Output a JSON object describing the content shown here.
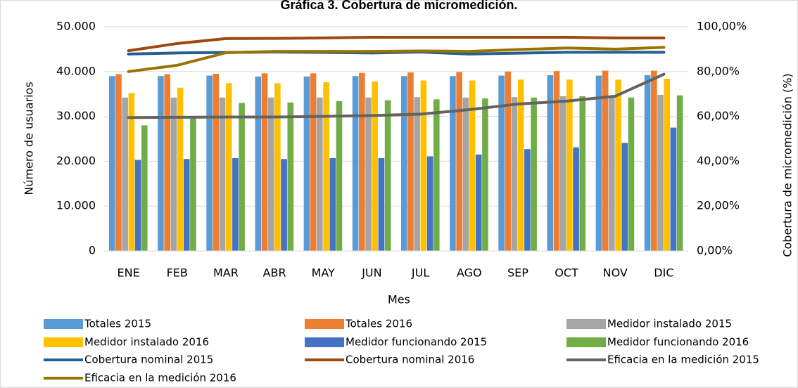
{
  "chart_data": {
    "type": "bar",
    "title": "Gráfica 3. Cobertura de micromedición.",
    "x_label": "Mes",
    "y_label": "Número de usuarios",
    "y2_label": "Cobertura de micromedición (%)",
    "categories": [
      "ENE",
      "FEB",
      "MAR",
      "ABR",
      "MAY",
      "JUN",
      "JUL",
      "AGO",
      "SEP",
      "OCT",
      "NOV",
      "DIC"
    ],
    "ylim": [
      0,
      50000
    ],
    "yticks": [
      0,
      {
        "value": 10000,
        "label": "10.000"
      },
      {
        "value": 20000,
        "label": "20.000"
      },
      {
        "value": 30000,
        "label": "30.000"
      },
      {
        "value": 40000,
        "label": "40.000"
      },
      {
        "value": 50000,
        "label": "50.000"
      }
    ],
    "y2lim": [
      0,
      100
    ],
    "y2ticks": [
      {
        "value": 0,
        "label": "0,00%"
      },
      {
        "value": 20,
        "label": "20,00%"
      },
      {
        "value": 40,
        "label": "40,00%"
      },
      {
        "value": 60,
        "label": "60,00%"
      },
      {
        "value": 80,
        "label": "80,00%"
      },
      {
        "value": 100,
        "label": "100,00%"
      }
    ],
    "grid": true,
    "legend": "bottom",
    "series": [
      {
        "name": "Totales 2015",
        "type": "bar",
        "color": "#5b9bd5",
        "values": [
          39000,
          39000,
          39100,
          38900,
          38900,
          39000,
          39000,
          39000,
          39100,
          39200,
          39100,
          39200
        ]
      },
      {
        "name": "Totales 2016",
        "type": "bar",
        "color": "#ed7d31",
        "values": [
          39400,
          39400,
          39500,
          39600,
          39600,
          39700,
          39800,
          39900,
          40000,
          40100,
          40200,
          40200
        ]
      },
      {
        "name": "Medidor instalado 2015",
        "type": "bar",
        "color": "#a5a5a5",
        "values": [
          34200,
          34200,
          34200,
          34200,
          34200,
          34200,
          34300,
          34200,
          34300,
          34500,
          34500,
          34800
        ]
      },
      {
        "name": "Medidor instalado 2016",
        "type": "bar",
        "color": "#ffc000",
        "values": [
          35200,
          36400,
          37400,
          37400,
          37600,
          37800,
          38000,
          38000,
          38200,
          38200,
          38200,
          38400
        ]
      },
      {
        "name": "Medidor funcionando 2015",
        "type": "bar",
        "color": "#4472c4",
        "values": [
          20300,
          20500,
          20700,
          20500,
          20700,
          20700,
          21100,
          21500,
          22700,
          23100,
          24100,
          27500
        ]
      },
      {
        "name": "Medidor funcionando 2016",
        "type": "bar",
        "color": "#70ad47",
        "values": [
          28000,
          29800,
          33000,
          33100,
          33400,
          33600,
          33800,
          34000,
          34200,
          34500,
          34200,
          34700
        ]
      },
      {
        "name": "Cobertura nominal 2015",
        "type": "line",
        "axis": "y2",
        "color": "#255e91",
        "values": [
          87.8,
          88.3,
          88.5,
          88.7,
          88.5,
          88.3,
          88.7,
          87.8,
          88.2,
          88.6,
          88.6,
          88.6
        ]
      },
      {
        "name": "Cobertura nominal 2016",
        "type": "line",
        "axis": "y2",
        "color": "#9e480e",
        "values": [
          89.3,
          92.5,
          94.7,
          94.8,
          95,
          95.3,
          95.3,
          95.3,
          95.3,
          95.3,
          95,
          95
        ]
      },
      {
        "name": "Eficacia en la medición 2015",
        "type": "line",
        "axis": "y2",
        "color": "#636363",
        "values": [
          59.5,
          59.6,
          59.7,
          59.7,
          60,
          60.4,
          61,
          63,
          65.5,
          66.8,
          69,
          78.8
        ]
      },
      {
        "name": "Eficacia en la medición 2016",
        "type": "line",
        "axis": "y2",
        "color": "#997300",
        "values": [
          80,
          82.8,
          88.4,
          89,
          89,
          89,
          89.2,
          89,
          89.8,
          90.5,
          90,
          90.8
        ]
      }
    ]
  }
}
